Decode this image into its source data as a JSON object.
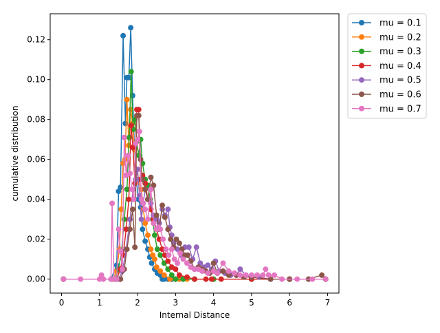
{
  "chart_data": {
    "type": "line",
    "title": "",
    "xlabel": "Internal Distance",
    "ylabel": "cumulative distribution",
    "xlim": [
      -0.3,
      7.3
    ],
    "ylim": [
      -0.007,
      0.133
    ],
    "xticks": [
      0,
      1,
      2,
      3,
      4,
      5,
      6,
      7
    ],
    "xtick_labels": [
      "0",
      "1",
      "2",
      "3",
      "4",
      "5",
      "6",
      "7"
    ],
    "yticks": [
      0.0,
      0.02,
      0.04,
      0.06,
      0.08,
      0.1,
      0.12
    ],
    "ytick_labels": [
      "0.00",
      "0.02",
      "0.04",
      "0.06",
      "0.08",
      "0.10",
      "0.12"
    ],
    "grid": false,
    "legend_position": "outside-right-top",
    "markers": "circle",
    "series": [
      {
        "name": "mu = 0.1",
        "color": "#1f77b4",
        "points": [
          [
            0.05,
            0
          ],
          [
            1.3,
            0
          ],
          [
            1.45,
            0.007
          ],
          [
            1.5,
            0.044
          ],
          [
            1.55,
            0.046
          ],
          [
            1.62,
            0.122
          ],
          [
            1.68,
            0.078
          ],
          [
            1.72,
            0.101
          ],
          [
            1.77,
            0.101
          ],
          [
            1.82,
            0.126
          ],
          [
            1.87,
            0.092
          ],
          [
            1.92,
            0.065
          ],
          [
            1.97,
            0.05
          ],
          [
            2.02,
            0.04
          ],
          [
            2.08,
            0.036
          ],
          [
            2.13,
            0.025
          ],
          [
            2.2,
            0.019
          ],
          [
            2.27,
            0.015
          ],
          [
            2.32,
            0.011
          ],
          [
            2.37,
            0.008
          ],
          [
            2.45,
            0.005
          ],
          [
            2.52,
            0.003
          ],
          [
            2.6,
            0.002
          ],
          [
            2.65,
            0
          ],
          [
            2.7,
            0
          ],
          [
            2.8,
            0
          ],
          [
            2.9,
            0
          ],
          [
            3.0,
            0
          ],
          [
            3.2,
            0
          ],
          [
            3.5,
            0
          ],
          [
            4.0,
            0
          ],
          [
            5.0,
            0
          ],
          [
            6.0,
            0
          ],
          [
            6.95,
            0
          ]
        ]
      },
      {
        "name": "mu = 0.2",
        "color": "#ff7f0e",
        "points": [
          [
            0.05,
            0
          ],
          [
            1.35,
            0
          ],
          [
            1.45,
            0.004
          ],
          [
            1.52,
            0.015
          ],
          [
            1.57,
            0.035
          ],
          [
            1.62,
            0.058
          ],
          [
            1.67,
            0.06
          ],
          [
            1.72,
            0.09
          ],
          [
            1.77,
            0.067
          ],
          [
            1.82,
            0.085
          ],
          [
            1.87,
            0.078
          ],
          [
            1.92,
            0.065
          ],
          [
            1.97,
            0.055
          ],
          [
            2.02,
            0.05
          ],
          [
            2.1,
            0.045
          ],
          [
            2.15,
            0.035
          ],
          [
            2.2,
            0.028
          ],
          [
            2.27,
            0.022
          ],
          [
            2.35,
            0.015
          ],
          [
            2.4,
            0.012
          ],
          [
            2.45,
            0.01
          ],
          [
            2.5,
            0.006
          ],
          [
            2.6,
            0.004
          ],
          [
            2.7,
            0.002
          ],
          [
            2.85,
            0
          ],
          [
            3.0,
            0
          ],
          [
            3.1,
            0
          ],
          [
            3.3,
            0
          ],
          [
            4.0,
            0
          ],
          [
            5.0,
            0
          ],
          [
            6.0,
            0
          ],
          [
            6.95,
            0
          ]
        ]
      },
      {
        "name": "mu = 0.3",
        "color": "#2ca02c",
        "points": [
          [
            0.05,
            0
          ],
          [
            1.4,
            0
          ],
          [
            1.5,
            0.005
          ],
          [
            1.58,
            0.014
          ],
          [
            1.65,
            0.03
          ],
          [
            1.72,
            0.045
          ],
          [
            1.78,
            0.071
          ],
          [
            1.83,
            0.104
          ],
          [
            1.88,
            0.075
          ],
          [
            1.93,
            0.08
          ],
          [
            1.98,
            0.069
          ],
          [
            2.03,
            0.062
          ],
          [
            2.08,
            0.07
          ],
          [
            2.13,
            0.058
          ],
          [
            2.2,
            0.05
          ],
          [
            2.27,
            0.047
          ],
          [
            2.33,
            0.04
          ],
          [
            2.4,
            0.03
          ],
          [
            2.45,
            0.022
          ],
          [
            2.52,
            0.015
          ],
          [
            2.6,
            0.012
          ],
          [
            2.7,
            0.008
          ],
          [
            2.8,
            0.005
          ],
          [
            2.9,
            0.002
          ],
          [
            3.0,
            0
          ],
          [
            3.2,
            0
          ],
          [
            3.5,
            0
          ],
          [
            4.0,
            0
          ],
          [
            5.0,
            0
          ],
          [
            6.0,
            0
          ],
          [
            6.95,
            0
          ]
        ]
      },
      {
        "name": "mu = 0.4",
        "color": "#d62728",
        "points": [
          [
            0.05,
            0
          ],
          [
            1.45,
            0
          ],
          [
            1.55,
            0.005
          ],
          [
            1.62,
            0.012
          ],
          [
            1.7,
            0.025
          ],
          [
            1.77,
            0.04
          ],
          [
            1.83,
            0.077
          ],
          [
            1.88,
            0.066
          ],
          [
            1.93,
            0.048
          ],
          [
            1.98,
            0.085
          ],
          [
            2.03,
            0.085
          ],
          [
            2.08,
            0.05
          ],
          [
            2.13,
            0.052
          ],
          [
            2.2,
            0.048
          ],
          [
            2.27,
            0.04
          ],
          [
            2.35,
            0.035
          ],
          [
            2.42,
            0.03
          ],
          [
            2.5,
            0.025
          ],
          [
            2.57,
            0.02
          ],
          [
            2.65,
            0.015
          ],
          [
            2.72,
            0.012
          ],
          [
            2.8,
            0.009
          ],
          [
            2.9,
            0.006
          ],
          [
            3.0,
            0.005
          ],
          [
            3.1,
            0.002
          ],
          [
            3.3,
            0.001
          ],
          [
            3.5,
            0
          ],
          [
            3.8,
            0
          ],
          [
            3.95,
            0
          ],
          [
            4.2,
            0
          ],
          [
            5.0,
            0
          ],
          [
            6.0,
            0
          ],
          [
            6.95,
            0
          ]
        ]
      },
      {
        "name": "mu = 0.5",
        "color": "#9467bd",
        "points": [
          [
            0.05,
            0
          ],
          [
            1.5,
            0
          ],
          [
            1.6,
            0.004
          ],
          [
            1.7,
            0.015
          ],
          [
            1.8,
            0.03
          ],
          [
            1.88,
            0.045
          ],
          [
            1.95,
            0.05
          ],
          [
            2.0,
            0.055
          ],
          [
            2.05,
            0.042
          ],
          [
            2.1,
            0.03
          ],
          [
            2.15,
            0.038
          ],
          [
            2.2,
            0.045
          ],
          [
            2.27,
            0.04
          ],
          [
            2.35,
            0.038
          ],
          [
            2.42,
            0.032
          ],
          [
            2.5,
            0.03
          ],
          [
            2.57,
            0.028
          ],
          [
            2.65,
            0.035
          ],
          [
            2.72,
            0.032
          ],
          [
            2.8,
            0.035
          ],
          [
            2.85,
            0.026
          ],
          [
            2.9,
            0.022
          ],
          [
            2.95,
            0.018
          ],
          [
            3.05,
            0.015
          ],
          [
            3.15,
            0.012
          ],
          [
            3.25,
            0.016
          ],
          [
            3.35,
            0.016
          ],
          [
            3.45,
            0.01
          ],
          [
            3.55,
            0.016
          ],
          [
            3.65,
            0.008
          ],
          [
            3.75,
            0.006
          ],
          [
            3.85,
            0.007
          ],
          [
            3.95,
            0.005
          ],
          [
            4.05,
            0.009
          ],
          [
            4.15,
            0.004
          ],
          [
            4.3,
            0.003
          ],
          [
            4.45,
            0.002
          ],
          [
            4.6,
            0.002
          ],
          [
            4.7,
            0.005
          ],
          [
            4.85,
            0.002
          ],
          [
            5.0,
            0.001
          ],
          [
            5.2,
            0.001
          ],
          [
            5.5,
            0
          ],
          [
            6.0,
            0
          ],
          [
            6.5,
            0
          ],
          [
            6.95,
            0
          ]
        ]
      },
      {
        "name": "mu = 0.6",
        "color": "#8c564b",
        "points": [
          [
            0.05,
            0
          ],
          [
            1.55,
            0
          ],
          [
            1.65,
            0.005
          ],
          [
            1.72,
            0.015
          ],
          [
            1.8,
            0.025
          ],
          [
            1.87,
            0.035
          ],
          [
            1.93,
            0.016
          ],
          [
            1.98,
            0.082
          ],
          [
            2.03,
            0.082
          ],
          [
            2.08,
            0.06
          ],
          [
            2.13,
            0.05
          ],
          [
            2.2,
            0.045
          ],
          [
            2.27,
            0.04
          ],
          [
            2.35,
            0.051
          ],
          [
            2.42,
            0.047
          ],
          [
            2.5,
            0.032
          ],
          [
            2.57,
            0.025
          ],
          [
            2.65,
            0.037
          ],
          [
            2.72,
            0.031
          ],
          [
            2.8,
            0.025
          ],
          [
            2.87,
            0.02
          ],
          [
            2.95,
            0.016
          ],
          [
            3.02,
            0.02
          ],
          [
            3.1,
            0.018
          ],
          [
            3.17,
            0.015
          ],
          [
            3.25,
            0.012
          ],
          [
            3.32,
            0.012
          ],
          [
            3.4,
            0.009
          ],
          [
            3.5,
            0.005
          ],
          [
            3.6,
            0.006
          ],
          [
            3.7,
            0.005
          ],
          [
            3.8,
            0.004
          ],
          [
            3.9,
            0.003
          ],
          [
            4.0,
            0.008
          ],
          [
            4.1,
            0.003
          ],
          [
            4.25,
            0.004
          ],
          [
            4.4,
            0.002
          ],
          [
            4.6,
            0.002
          ],
          [
            4.8,
            0.001
          ],
          [
            5.0,
            0.001
          ],
          [
            5.5,
            0
          ],
          [
            6.0,
            0
          ],
          [
            6.5,
            0
          ],
          [
            6.85,
            0.002
          ],
          [
            6.95,
            0
          ]
        ]
      },
      {
        "name": "mu = 0.7",
        "color": "#e377c2",
        "points": [
          [
            0.05,
            0
          ],
          [
            0.5,
            0
          ],
          [
            1.0,
            0
          ],
          [
            1.05,
            0.002
          ],
          [
            1.1,
            0
          ],
          [
            1.3,
            0
          ],
          [
            1.33,
            0.038
          ],
          [
            1.38,
            0
          ],
          [
            1.45,
            0
          ],
          [
            1.5,
            0.025
          ],
          [
            1.55,
            0.014
          ],
          [
            1.6,
            0.005
          ],
          [
            1.65,
            0.071
          ],
          [
            1.7,
            0.052
          ],
          [
            1.75,
            0.062
          ],
          [
            1.8,
            0.053
          ],
          [
            1.85,
            0.045
          ],
          [
            1.9,
            0.04
          ],
          [
            1.95,
            0.068
          ],
          [
            2.0,
            0.07
          ],
          [
            2.05,
            0.074
          ],
          [
            2.1,
            0.04
          ],
          [
            2.15,
            0.038
          ],
          [
            2.2,
            0.035
          ],
          [
            2.27,
            0.03
          ],
          [
            2.35,
            0.045
          ],
          [
            2.42,
            0.028
          ],
          [
            2.5,
            0.025
          ],
          [
            2.55,
            0.026
          ],
          [
            2.6,
            0.025
          ],
          [
            2.67,
            0.02
          ],
          [
            2.75,
            0.015
          ],
          [
            2.82,
            0.012
          ],
          [
            2.9,
            0.015
          ],
          [
            2.97,
            0.01
          ],
          [
            3.05,
            0.008
          ],
          [
            3.12,
            0.013
          ],
          [
            3.2,
            0.01
          ],
          [
            3.3,
            0.008
          ],
          [
            3.4,
            0.006
          ],
          [
            3.5,
            0.005
          ],
          [
            3.6,
            0.005
          ],
          [
            3.7,
            0.004
          ],
          [
            3.85,
            0.003
          ],
          [
            4.0,
            0.004
          ],
          [
            4.1,
            0.003
          ],
          [
            4.25,
            0.008
          ],
          [
            4.4,
            0.004
          ],
          [
            4.55,
            0.003
          ],
          [
            4.7,
            0.002
          ],
          [
            4.85,
            0.002
          ],
          [
            5.0,
            0.002
          ],
          [
            5.15,
            0.002
          ],
          [
            5.3,
            0.002
          ],
          [
            5.37,
            0.005
          ],
          [
            5.45,
            0.002
          ],
          [
            5.6,
            0.002
          ],
          [
            5.8,
            0
          ],
          [
            6.2,
            0
          ],
          [
            6.6,
            0
          ],
          [
            6.95,
            0
          ]
        ]
      }
    ]
  }
}
